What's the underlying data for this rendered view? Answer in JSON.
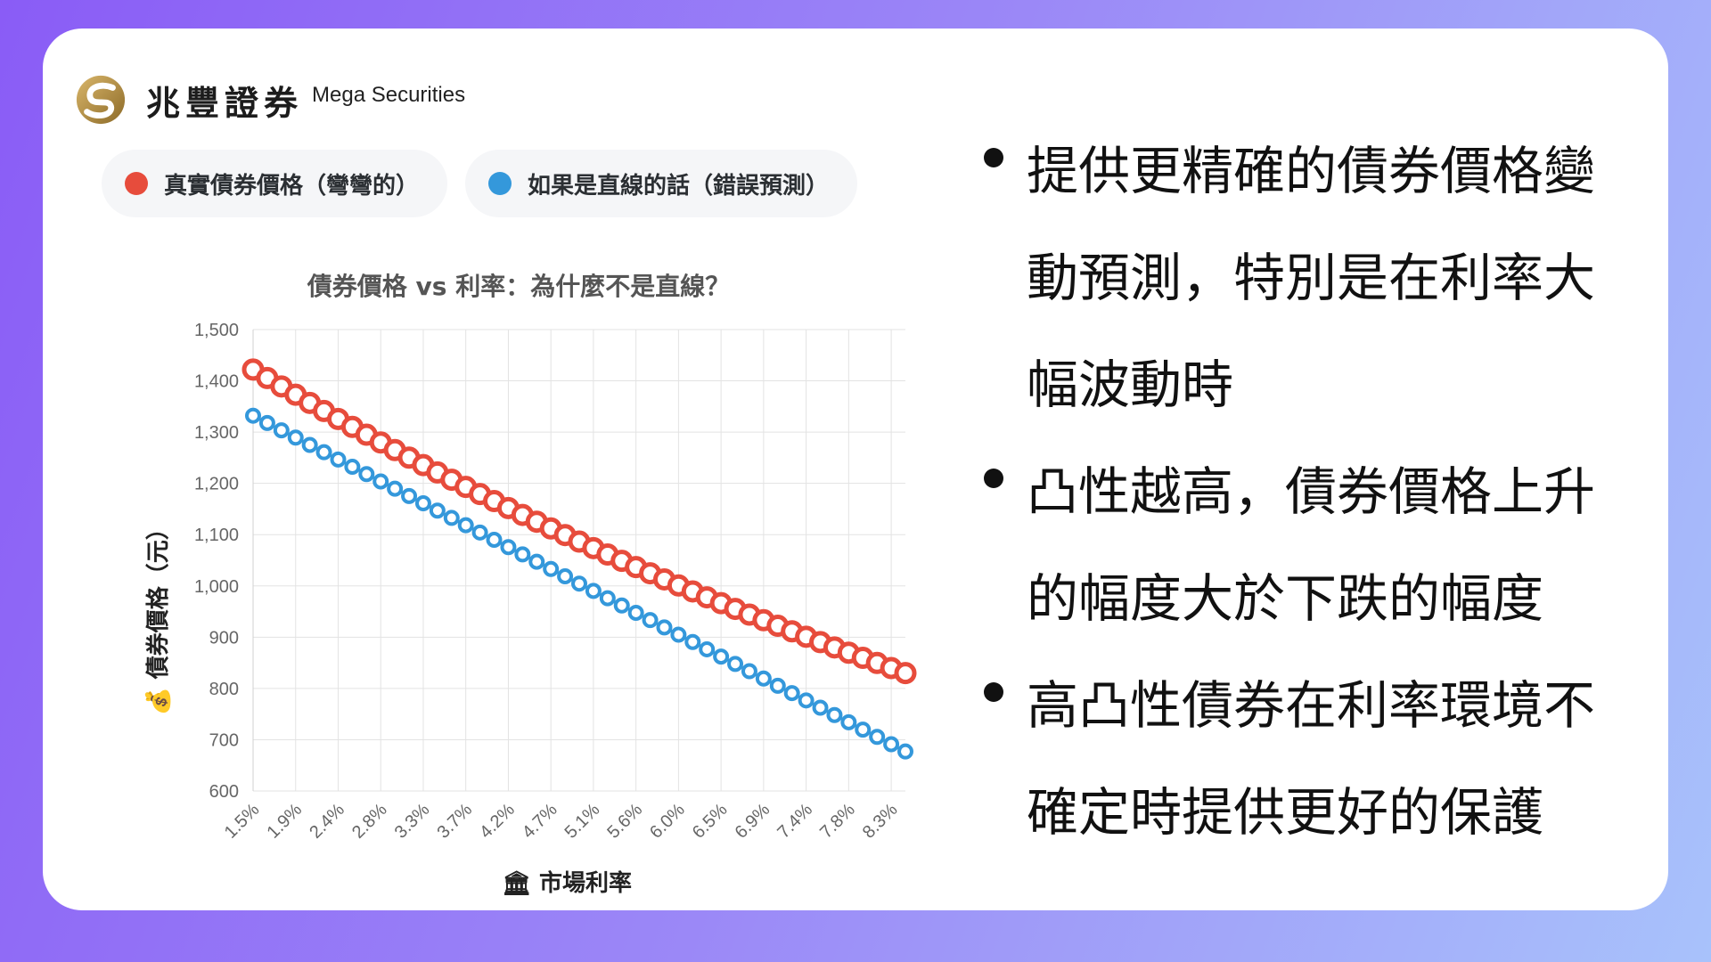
{
  "brand": {
    "name_cn": "兆豐證券",
    "name_en": "Mega Securities"
  },
  "legend": [
    {
      "label": "真實債券價格（彎彎的）",
      "color": "#e74c3c"
    },
    {
      "label": "如果是直線的話（錯誤預測）",
      "color": "#3498db"
    }
  ],
  "chart_data": {
    "type": "line",
    "title": "債券價格 vs 利率：為什麼不是直線？",
    "xlabel": "🏛 市場利率",
    "ylabel": "💰 債券價格（元）",
    "ylim": [
      600,
      1500
    ],
    "y_ticks": [
      "1,500",
      "1,400",
      "1,300",
      "1,200",
      "1,100",
      "1,000",
      "900",
      "800",
      "700",
      "600"
    ],
    "x_tick_labels": [
      "1.5%",
      "1.9%",
      "2.4%",
      "2.8%",
      "3.3%",
      "3.7%",
      "4.2%",
      "4.7%",
      "5.1%",
      "5.6%",
      "6.0%",
      "6.5%",
      "6.9%",
      "7.4%",
      "7.8%",
      "8.3%"
    ],
    "x_range": [
      1.5,
      8.3
    ],
    "points_per_series": 47,
    "series": [
      {
        "name": "真實債券價格（彎彎的）",
        "color": "#e74c3c",
        "start": 1422,
        "end": 830,
        "shape": "convex"
      },
      {
        "name": "如果是直線的話（錯誤預測）",
        "color": "#3498db",
        "start": 1332,
        "end": 677,
        "shape": "tangent"
      }
    ],
    "grid": true
  },
  "bullets": [
    "提供更精確的債券價格變動預測，特別是在利率大幅波動時",
    "凸性越高，債券價格上升的幅度大於下跌的幅度",
    "高凸性債券在利率環境不確定時提供更好的保護"
  ]
}
